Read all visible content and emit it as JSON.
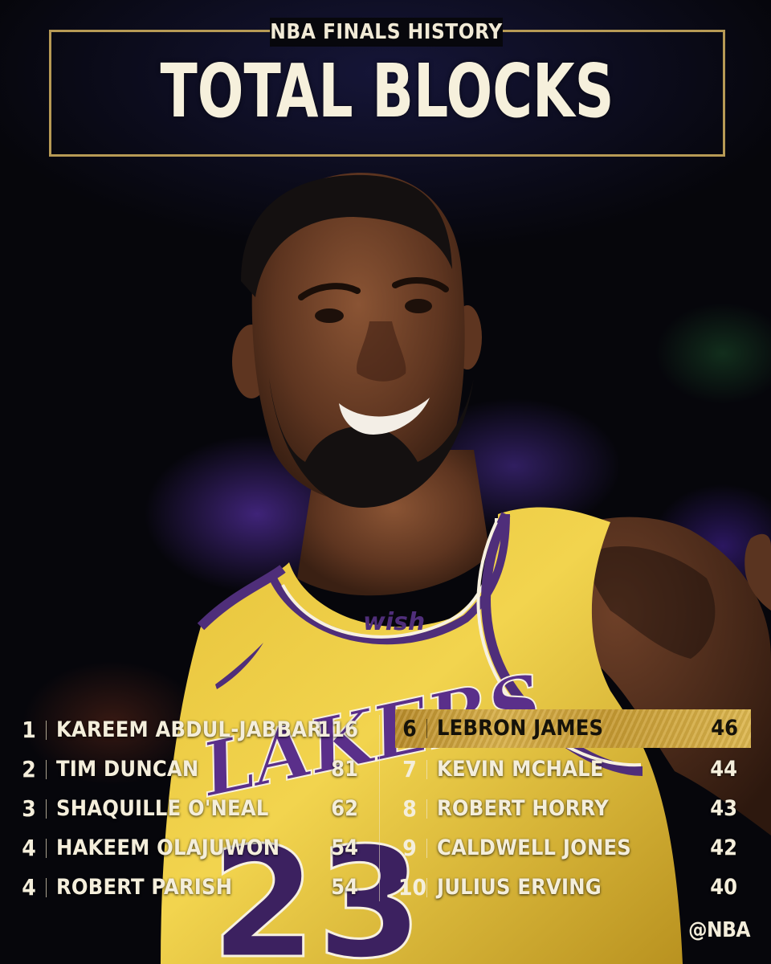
{
  "header": {
    "kicker": "NBA FINALS HISTORY",
    "title": "TOTAL BLOCKS"
  },
  "photo": {
    "jersey_team": "LAKERS",
    "jersey_number": "23",
    "jersey_sponsor": "wish"
  },
  "leaderboard": {
    "left": [
      {
        "rank": "1",
        "name": "KAREEM ABDUL-JABBAR",
        "value": "116"
      },
      {
        "rank": "2",
        "name": "TIM DUNCAN",
        "value": "81"
      },
      {
        "rank": "3",
        "name": "SHAQUILLE O'NEAL",
        "value": "62"
      },
      {
        "rank": "4",
        "name": "HAKEEM OLAJUWON",
        "value": "54"
      },
      {
        "rank": "4",
        "name": "ROBERT PARISH",
        "value": "54"
      }
    ],
    "right": [
      {
        "rank": "6",
        "name": "LEBRON JAMES",
        "value": "46",
        "highlighted": true
      },
      {
        "rank": "7",
        "name": "KEVIN MCHALE",
        "value": "44"
      },
      {
        "rank": "8",
        "name": "ROBERT HORRY",
        "value": "43"
      },
      {
        "rank": "9",
        "name": "CALDWELL JONES",
        "value": "42"
      },
      {
        "rank": "10",
        "name": "JULIUS ERVING",
        "value": "40"
      }
    ]
  },
  "brand": {
    "handle": "@NBA"
  },
  "colors": {
    "gold": "#b79a55",
    "highlight_gold": "#d9b14b",
    "jersey_yellow": "#f2cf3c",
    "jersey_purple": "#4f2e7a",
    "text_cream": "#f4eedb"
  }
}
